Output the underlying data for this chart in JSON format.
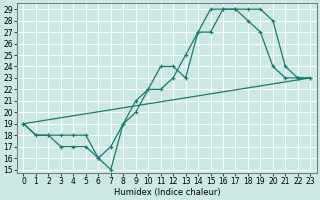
{
  "xlabel": "Humidex (Indice chaleur)",
  "bg_color": "#cce8e4",
  "grid_color": "#ffffff",
  "line_color": "#1a7a6e",
  "xlim_min": -0.5,
  "xlim_max": 23.5,
  "ylim_min": 14.7,
  "ylim_max": 29.5,
  "xticks": [
    0,
    1,
    2,
    3,
    4,
    5,
    6,
    7,
    8,
    9,
    10,
    11,
    12,
    13,
    14,
    15,
    16,
    17,
    18,
    19,
    20,
    21,
    22,
    23
  ],
  "yticks": [
    15,
    16,
    17,
    18,
    19,
    20,
    21,
    22,
    23,
    24,
    25,
    26,
    27,
    28,
    29
  ],
  "line1_x": [
    0,
    1,
    2,
    3,
    4,
    5,
    6,
    7,
    8,
    9,
    10,
    11,
    12,
    13,
    14,
    15,
    16,
    17,
    18,
    19,
    20,
    21,
    22,
    23
  ],
  "line1_y": [
    19,
    18,
    18,
    18,
    18,
    18,
    16,
    15,
    19,
    21,
    22,
    24,
    24,
    23,
    27,
    27,
    29,
    29,
    29,
    29,
    28,
    24,
    23,
    23
  ],
  "line2_x": [
    0,
    1,
    2,
    3,
    4,
    5,
    6,
    7,
    8,
    9,
    10,
    11,
    12,
    13,
    14,
    15,
    16,
    17,
    18,
    19,
    20,
    21,
    22,
    23
  ],
  "line2_y": [
    19,
    18,
    18,
    17,
    17,
    17,
    16,
    17,
    19,
    20,
    22,
    22,
    23,
    25,
    27,
    29,
    29,
    29,
    28,
    27,
    24,
    23,
    23,
    23
  ],
  "line3_x": [
    0,
    23
  ],
  "line3_y": [
    19,
    23
  ],
  "xlabel_fontsize": 6.0,
  "tick_fontsize": 5.5
}
